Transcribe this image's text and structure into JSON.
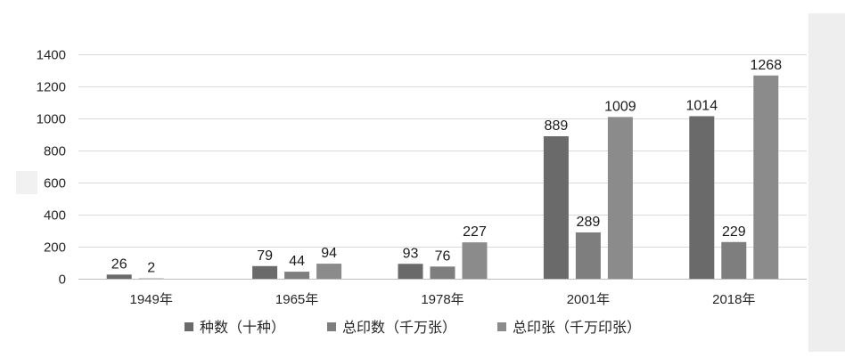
{
  "chart_data": {
    "type": "bar",
    "categories": [
      "1949年",
      "1965年",
      "1978年",
      "2001年",
      "2018年"
    ],
    "series": [
      {
        "name": "种数（十种）",
        "color": "#6a6a6a",
        "values": [
          26,
          79,
          93,
          889,
          1014
        ]
      },
      {
        "name": "总印数（千万张）",
        "color": "#7e7e7e",
        "values": [
          2,
          44,
          76,
          289,
          229
        ]
      },
      {
        "name": "总印张（千万印张）",
        "color": "#8b8b8b",
        "values": [
          null,
          94,
          227,
          1009,
          1268
        ]
      }
    ],
    "ylim": [
      0,
      1400
    ],
    "yticks": [
      0,
      200,
      400,
      600,
      800,
      1000,
      1200,
      1400
    ],
    "grid": true,
    "legend": "bottom"
  }
}
